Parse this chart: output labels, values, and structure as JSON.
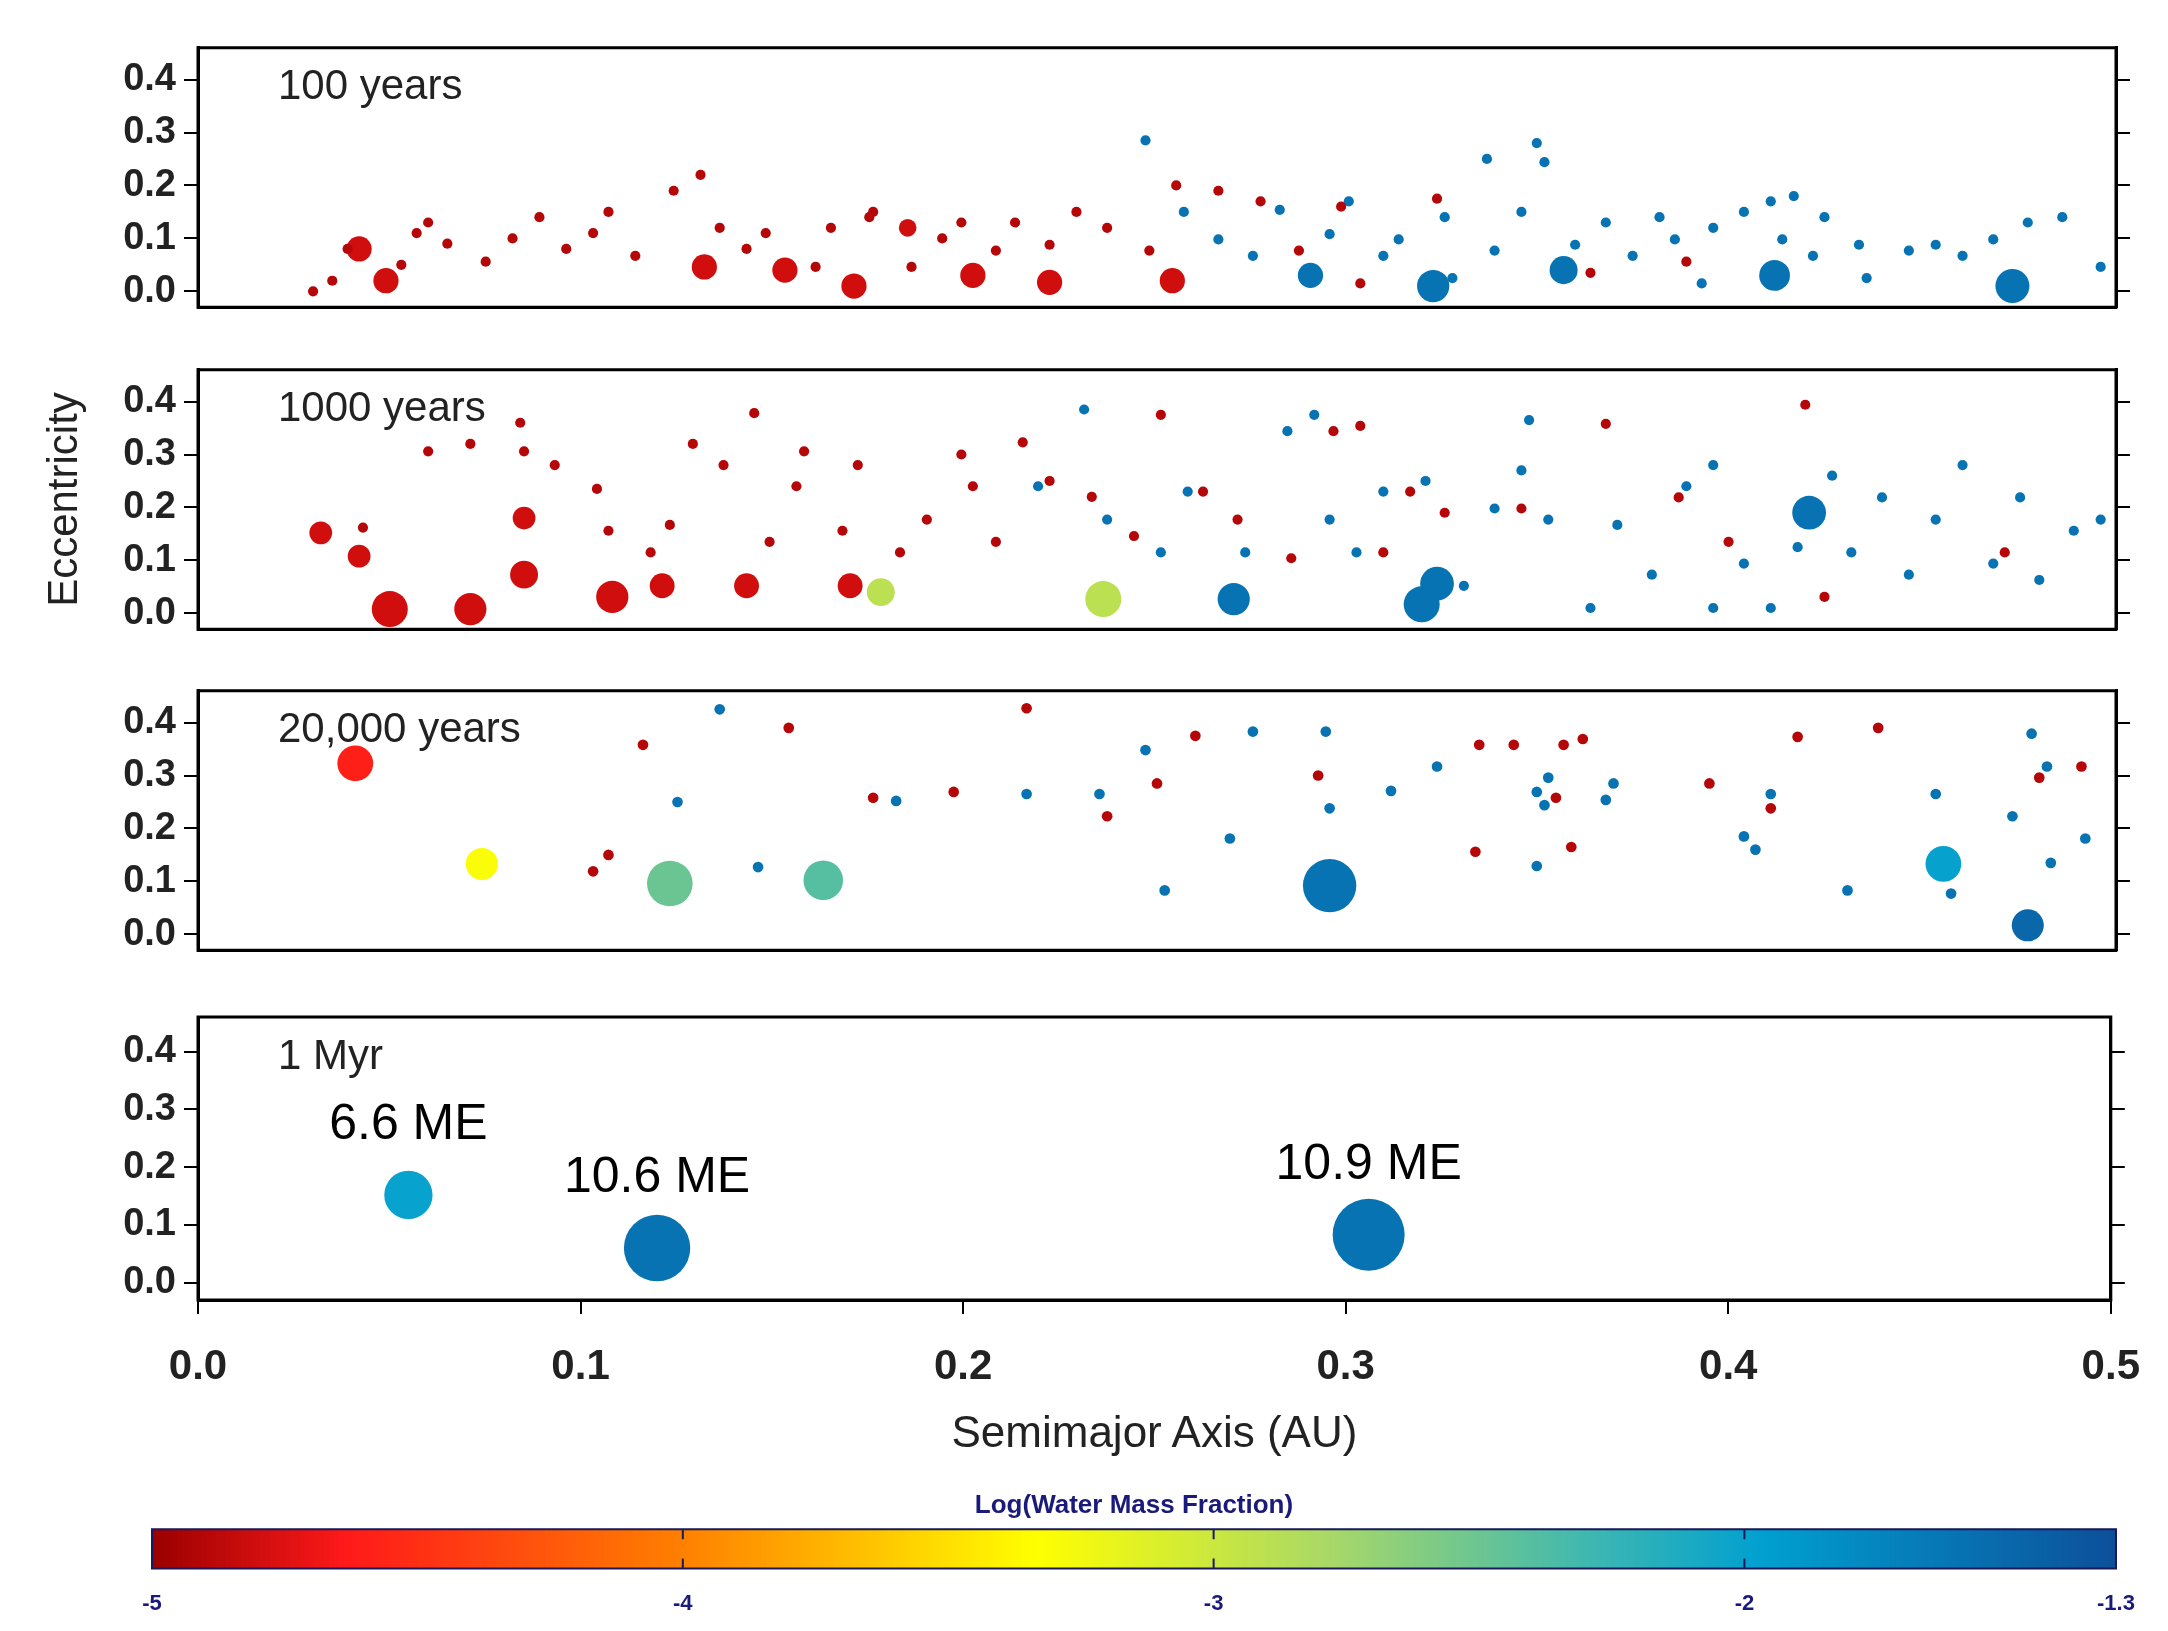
{
  "chart_data": [
    {
      "type": "bubble",
      "title": "100 years",
      "xlim": [
        0,
        0.5
      ],
      "ylim": [
        -0.03,
        0.46
      ],
      "tick_labels": "y",
      "xticks": [
        {
          "value": 0,
          "label": null
        },
        {
          "value": 0.1,
          "label": null
        },
        {
          "value": 0.2,
          "label": null
        },
        {
          "value": 0.3,
          "label": null
        },
        {
          "value": 0.4,
          "label": null
        },
        {
          "value": 0.5,
          "label": null
        }
      ],
      "yticks": [
        {
          "value": 0,
          "label": "0.0"
        },
        {
          "value": 0.1,
          "label": "0.1"
        },
        {
          "value": 0.2,
          "label": "0.2"
        },
        {
          "value": 0.3,
          "label": "0.3"
        },
        {
          "value": 0.4,
          "label": "0.4"
        }
      ],
      "series": [
        {
          "color": "#b50707",
          "x": [
            0.03,
            0.035,
            0.039,
            0.053,
            0.057,
            0.065,
            0.06,
            0.075,
            0.082,
            0.089,
            0.096,
            0.103,
            0.107,
            0.114,
            0.124,
            0.131,
            0.136,
            0.143,
            0.148,
            0.161,
            0.165,
            0.175,
            0.176,
            0.186,
            0.194,
            0.199,
            0.208,
            0.213,
            0.222,
            0.229,
            0.237,
            0.248,
            0.255,
            0.266,
            0.277,
            0.287,
            0.298,
            0.303,
            0.323,
            0.363,
            0.388
          ],
          "values": [
            0.0,
            0.02,
            0.08,
            0.05,
            0.11,
            0.09,
            0.13,
            0.056,
            0.1,
            0.14,
            0.08,
            0.11,
            0.15,
            0.067,
            0.19,
            0.22,
            0.12,
            0.08,
            0.11,
            0.046,
            0.12,
            0.14,
            0.15,
            0.046,
            0.1,
            0.13,
            0.077,
            0.13,
            0.088,
            0.15,
            0.12,
            0.077,
            0.2,
            0.19,
            0.17,
            0.077,
            0.16,
            0.015,
            0.175,
            0.035,
            0.056
          ],
          "sizes": [
            0.09,
            0.09,
            0.09,
            0.09,
            0.09,
            0.09,
            0.09,
            0.09,
            0.09,
            0.09,
            0.09,
            0.09,
            0.09,
            0.09,
            0.09,
            0.09,
            0.09,
            0.09,
            0.09,
            0.09,
            0.09,
            0.09,
            0.09,
            0.09,
            0.09,
            0.09,
            0.09,
            0.09,
            0.09,
            0.09,
            0.09,
            0.09,
            0.09,
            0.09,
            0.09,
            0.09,
            0.09,
            0.09,
            0.09,
            0.09,
            0.09
          ]
        },
        {
          "color": "#0773b2",
          "x": [
            0.247,
            0.257,
            0.266,
            0.275,
            0.282,
            0.295,
            0.3,
            0.309,
            0.313,
            0.325,
            0.336,
            0.338,
            0.349,
            0.351,
            0.345,
            0.359,
            0.367,
            0.374,
            0.381,
            0.385,
            0.395,
            0.403,
            0.41,
            0.413,
            0.416,
            0.421,
            0.424,
            0.433,
            0.446,
            0.453,
            0.46,
            0.468,
            0.477,
            0.486,
            0.496,
            0.392,
            0.435,
            0.327
          ],
          "values": [
            0.285,
            0.15,
            0.098,
            0.067,
            0.154,
            0.108,
            0.17,
            0.067,
            0.098,
            0.14,
            0.25,
            0.077,
            0.28,
            0.244,
            0.15,
            0.088,
            0.13,
            0.067,
            0.14,
            0.098,
            0.12,
            0.15,
            0.17,
            0.098,
            0.18,
            0.067,
            0.14,
            0.088,
            0.077,
            0.088,
            0.067,
            0.098,
            0.13,
            0.14,
            0.046,
            0.015,
            0.025,
            0.025
          ],
          "sizes": [
            0.09,
            0.09,
            0.09,
            0.09,
            0.09,
            0.09,
            0.09,
            0.09,
            0.09,
            0.09,
            0.09,
            0.09,
            0.09,
            0.09,
            0.09,
            0.09,
            0.09,
            0.09,
            0.09,
            0.09,
            0.09,
            0.09,
            0.09,
            0.09,
            0.09,
            0.09,
            0.09,
            0.09,
            0.09,
            0.09,
            0.09,
            0.09,
            0.09,
            0.09,
            0.09,
            0.09,
            0.09,
            0.09
          ]
        },
        {
          "colors": [
            "#d10e0e",
            "#d10e0e",
            "#d10e0e",
            "#d10e0e",
            "#d10e0e",
            "#d10e0e",
            "#d10e0e",
            "#d10e0e",
            "#d10e0e",
            "#0773b2",
            "#0773b2",
            "#0773b2",
            "#0773b2",
            "#0773b2"
          ],
          "x": [
            0.049,
            0.042,
            0.132,
            0.153,
            0.171,
            0.202,
            0.222,
            0.254,
            0.185,
            0.29,
            0.322,
            0.356,
            0.411,
            0.473
          ],
          "values": [
            0.02,
            0.08,
            0.046,
            0.04,
            0.01,
            0.03,
            0.017,
            0.02,
            0.12,
            0.03,
            0.01,
            0.04,
            0.03,
            0.01
          ],
          "sizes": [
            0.55,
            0.55,
            0.55,
            0.55,
            0.55,
            0.55,
            0.55,
            0.55,
            0.27,
            0.55,
            0.9,
            0.68,
            0.82,
            1
          ]
        }
      ]
    },
    {
      "type": "bubble",
      "title": "1000 years",
      "ylabel": "Eccentricity",
      "xlim": [
        0,
        0.5
      ],
      "ylim": [
        -0.03,
        0.46
      ],
      "tick_labels": "y",
      "xticks": [
        {
          "value": 0,
          "label": null
        },
        {
          "value": 0.1,
          "label": null
        },
        {
          "value": 0.2,
          "label": null
        },
        {
          "value": 0.3,
          "label": null
        },
        {
          "value": 0.4,
          "label": null
        },
        {
          "value": 0.5,
          "label": null
        }
      ],
      "yticks": [
        {
          "value": 0,
          "label": "0.0"
        },
        {
          "value": 0.1,
          "label": "0.1"
        },
        {
          "value": 0.2,
          "label": "0.2"
        },
        {
          "value": 0.3,
          "label": "0.3"
        },
        {
          "value": 0.4,
          "label": "0.4"
        }
      ],
      "series": [
        {
          "color": "#b50707",
          "x": [
            0.043,
            0.06,
            0.071,
            0.084,
            0.085,
            0.093,
            0.104,
            0.107,
            0.118,
            0.123,
            0.129,
            0.137,
            0.145,
            0.149,
            0.156,
            0.158,
            0.168,
            0.172,
            0.183,
            0.19,
            0.199,
            0.202,
            0.208,
            0.215,
            0.222,
            0.233,
            0.244,
            0.251,
            0.262,
            0.271,
            0.285,
            0.296,
            0.303,
            0.309,
            0.316,
            0.325,
            0.345,
            0.367,
            0.386,
            0.399,
            0.419,
            0.424,
            0.471
          ],
          "values": [
            0.162,
            0.306,
            0.32,
            0.36,
            0.306,
            0.28,
            0.235,
            0.156,
            0.115,
            0.167,
            0.32,
            0.28,
            0.378,
            0.135,
            0.24,
            0.306,
            0.156,
            0.28,
            0.115,
            0.177,
            0.3,
            0.24,
            0.135,
            0.323,
            0.25,
            0.22,
            0.146,
            0.375,
            0.23,
            0.177,
            0.104,
            0.344,
            0.354,
            0.115,
            0.23,
            0.19,
            0.198,
            0.358,
            0.219,
            0.135,
            0.394,
            0.031,
            0.115
          ],
          "sizes": [
            0.08,
            0.08,
            0.08,
            0.08,
            0.08,
            0.08,
            0.08,
            0.08,
            0.08,
            0.08,
            0.08,
            0.08,
            0.08,
            0.08,
            0.08,
            0.08,
            0.08,
            0.08,
            0.08,
            0.08,
            0.08,
            0.08,
            0.08,
            0.08,
            0.08,
            0.08,
            0.08,
            0.08,
            0.08,
            0.08,
            0.08,
            0.08,
            0.08,
            0.08,
            0.08,
            0.08,
            0.08,
            0.08,
            0.08,
            0.08,
            0.08,
            0.08,
            0.08
          ]
        },
        {
          "color": "#0773b2",
          "x": [
            0.231,
            0.219,
            0.237,
            0.251,
            0.258,
            0.273,
            0.284,
            0.291,
            0.295,
            0.302,
            0.309,
            0.32,
            0.33,
            0.338,
            0.345,
            0.347,
            0.352,
            0.363,
            0.37,
            0.379,
            0.388,
            0.395,
            0.403,
            0.41,
            0.417,
            0.426,
            0.431,
            0.439,
            0.446,
            0.453,
            0.46,
            0.468,
            0.475,
            0.48,
            0.489,
            0.496,
            0.395
          ],
          "values": [
            0.385,
            0.24,
            0.177,
            0.115,
            0.23,
            0.115,
            0.344,
            0.375,
            0.177,
            0.115,
            0.23,
            0.25,
            0.052,
            0.198,
            0.27,
            0.365,
            0.177,
            0.01,
            0.167,
            0.073,
            0.24,
            0.28,
            0.094,
            0.01,
            0.125,
            0.26,
            0.115,
            0.219,
            0.073,
            0.177,
            0.28,
            0.094,
            0.219,
            0.063,
            0.156,
            0.177,
            0.01
          ],
          "sizes": [
            0.08,
            0.08,
            0.08,
            0.08,
            0.08,
            0.08,
            0.08,
            0.08,
            0.08,
            0.08,
            0.08,
            0.08,
            0.08,
            0.08,
            0.08,
            0.08,
            0.08,
            0.08,
            0.08,
            0.08,
            0.08,
            0.08,
            0.08,
            0.08,
            0.08,
            0.08,
            0.08,
            0.08,
            0.08,
            0.08,
            0.08,
            0.08,
            0.08,
            0.08,
            0.08,
            0.08,
            0.08
          ]
        },
        {
          "colors": [
            "#d10e0e",
            "#d10e0e",
            "#d10e0e",
            "#d10e0e",
            "#d10e0e",
            "#d10e0e",
            "#d10e0e",
            "#d10e0e",
            "#d10e0e",
            "#d10e0e",
            "#bbe052",
            "#bbe052",
            "#0773b2",
            "#0773b2",
            "#0773b2",
            "#0773b2"
          ],
          "x": [
            0.032,
            0.042,
            0.05,
            0.071,
            0.085,
            0.085,
            0.108,
            0.121,
            0.143,
            0.17,
            0.178,
            0.236,
            0.27,
            0.319,
            0.323,
            0.42
          ],
          "values": [
            0.152,
            0.108,
            0.008,
            0.008,
            0.18,
            0.073,
            0.031,
            0.052,
            0.052,
            0.052,
            0.04,
            0.027,
            0.027,
            0.017,
            0.056,
            0.19
          ],
          "sizes": [
            0.4,
            0.4,
            1,
            0.8,
            0.4,
            0.6,
            0.8,
            0.48,
            0.48,
            0.48,
            0.6,
            1,
            0.8,
            1,
            0.88,
            0.88
          ]
        }
      ]
    },
    {
      "type": "bubble",
      "title": "20,000 years",
      "xlim": [
        0,
        0.5
      ],
      "ylim": [
        -0.03,
        0.46
      ],
      "tick_labels": "y",
      "xticks": [
        {
          "value": 0,
          "label": null
        },
        {
          "value": 0.1,
          "label": null
        },
        {
          "value": 0.2,
          "label": null
        },
        {
          "value": 0.3,
          "label": null
        },
        {
          "value": 0.4,
          "label": null
        },
        {
          "value": 0.5,
          "label": null
        }
      ],
      "yticks": [
        {
          "value": 0,
          "label": "0.0"
        },
        {
          "value": 0.1,
          "label": "0.1"
        },
        {
          "value": 0.2,
          "label": "0.2"
        },
        {
          "value": 0.3,
          "label": "0.3"
        },
        {
          "value": 0.4,
          "label": "0.4"
        }
      ],
      "series": [
        {
          "color": "#b50707",
          "x": [
            0.116,
            0.154,
            0.176,
            0.103,
            0.107,
            0.197,
            0.216,
            0.237,
            0.25,
            0.26,
            0.292,
            0.334,
            0.343,
            0.356,
            0.361,
            0.354,
            0.358,
            0.394,
            0.41,
            0.417,
            0.438,
            0.48,
            0.491,
            0.333
          ],
          "values": [
            0.358,
            0.39,
            0.258,
            0.119,
            0.15,
            0.269,
            0.427,
            0.223,
            0.285,
            0.375,
            0.3,
            0.358,
            0.358,
            0.358,
            0.369,
            0.258,
            0.165,
            0.285,
            0.238,
            0.373,
            0.39,
            0.296,
            0.317,
            0.156
          ],
          "sizes": [
            0.04,
            0.04,
            0.04,
            0.04,
            0.04,
            0.04,
            0.04,
            0.04,
            0.04,
            0.04,
            0.04,
            0.04,
            0.04,
            0.04,
            0.04,
            0.04,
            0.04,
            0.04,
            0.04,
            0.04,
            0.04,
            0.04,
            0.04,
            0.04
          ]
        },
        {
          "color": "#0773b2",
          "x": [
            0.136,
            0.125,
            0.146,
            0.182,
            0.216,
            0.235,
            0.247,
            0.252,
            0.269,
            0.275,
            0.294,
            0.295,
            0.311,
            0.323,
            0.349,
            0.352,
            0.351,
            0.367,
            0.369,
            0.349,
            0.41,
            0.403,
            0.406,
            0.43,
            0.453,
            0.457,
            0.473,
            0.478,
            0.482,
            0.483,
            0.492
          ],
          "values": [
            0.425,
            0.25,
            0.127,
            0.252,
            0.265,
            0.265,
            0.348,
            0.083,
            0.181,
            0.383,
            0.383,
            0.238,
            0.271,
            0.317,
            0.269,
            0.296,
            0.244,
            0.254,
            0.285,
            0.129,
            0.265,
            0.185,
            0.16,
            0.083,
            0.265,
            0.077,
            0.223,
            0.379,
            0.317,
            0.135,
            0.181
          ],
          "sizes": [
            0.04,
            0.04,
            0.04,
            0.04,
            0.04,
            0.04,
            0.04,
            0.04,
            0.04,
            0.04,
            0.04,
            0.04,
            0.04,
            0.04,
            0.04,
            0.04,
            0.04,
            0.04,
            0.04,
            0.04,
            0.04,
            0.04,
            0.04,
            0.04,
            0.04,
            0.04,
            0.04,
            0.04,
            0.04,
            0.04,
            0.04
          ]
        },
        {
          "colors": [
            "#ff1f19",
            "#fafd06",
            "#6bc592",
            "#56bfa1",
            "#0773b2",
            "#06a2cd",
            "#0967aa"
          ],
          "x": [
            0.041,
            0.074,
            0.123,
            0.163,
            0.295,
            0.455,
            0.477
          ],
          "values": [
            0.323,
            0.133,
            0.096,
            0.102,
            0.092,
            0.133,
            0.017
          ],
          "sizes": [
            0.45,
            0.36,
            0.73,
            0.55,
            1,
            0.45,
            0.36
          ]
        }
      ]
    },
    {
      "type": "bubble",
      "title": "1 Myr",
      "xlabel": "Semimajor Axis (AU)",
      "clabel": "Log(Water Mass Fraction)",
      "xlim": [
        0,
        0.5
      ],
      "ylim": [
        -0.03,
        0.46
      ],
      "clim": [
        -5,
        -1.3
      ],
      "cticks": [
        -5,
        -4,
        -3,
        -2,
        -1.3
      ],
      "xticks": [
        {
          "value": 0,
          "label": "0.0"
        },
        {
          "value": 0.1,
          "label": "0.1"
        },
        {
          "value": 0.2,
          "label": "0.2"
        },
        {
          "value": 0.3,
          "label": "0.3"
        },
        {
          "value": 0.4,
          "label": "0.4"
        },
        {
          "value": 0.5,
          "label": "0.5"
        }
      ],
      "yticks": [
        {
          "value": 0,
          "label": "0.0"
        },
        {
          "value": 0.1,
          "label": "0.1"
        },
        {
          "value": 0.2,
          "label": "0.2"
        },
        {
          "value": 0.3,
          "label": "0.3"
        },
        {
          "value": 0.4,
          "label": "0.4"
        }
      ],
      "annotations": [
        {
          "text": "6.6 ME",
          "x": 0.055,
          "y": 0.152
        },
        {
          "text": "10.6 ME",
          "x": 0.12,
          "y": 0.06
        },
        {
          "text": "10.9 ME",
          "x": 0.306,
          "y": 0.083
        }
      ],
      "series": [
        {
          "x": [
            0.055,
            0.12,
            0.306
          ],
          "values": [
            0.152,
            0.06,
            0.083
          ],
          "sizes": [
            0.45,
            0.85,
            1
          ],
          "cvalues": [
            -2.0,
            -1.6,
            -1.6
          ]
        }
      ]
    }
  ]
}
